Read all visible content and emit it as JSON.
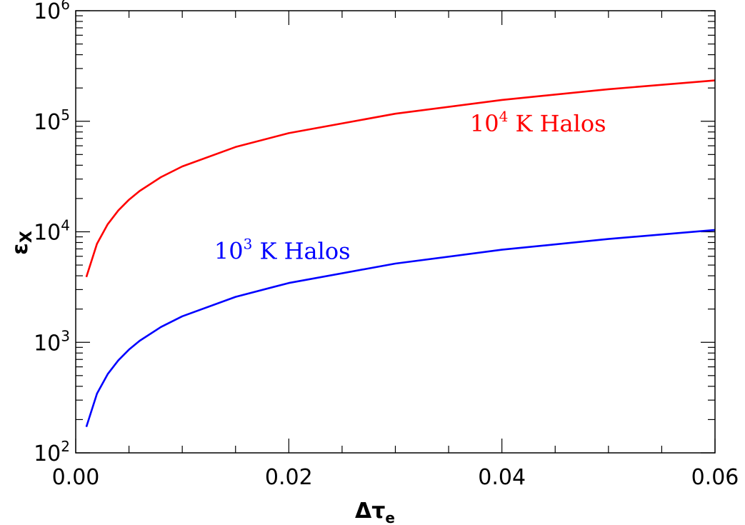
{
  "chart_data": {
    "type": "line",
    "title": "",
    "xlabel": "Δτ",
    "xlabel_subscript": "e",
    "ylabel": "ε",
    "ylabel_subscript": "X",
    "xlim": [
      0.0,
      0.06
    ],
    "ylim": [
      100,
      1000000
    ],
    "yscale": "log",
    "grid": false,
    "x_ticks": [
      {
        "value": 0.0,
        "label": "0.00"
      },
      {
        "value": 0.02,
        "label": "0.02"
      },
      {
        "value": 0.04,
        "label": "0.04"
      },
      {
        "value": 0.06,
        "label": "0.06"
      }
    ],
    "y_ticks": [
      {
        "value": 100,
        "base": "10",
        "exp": "2"
      },
      {
        "value": 1000,
        "base": "10",
        "exp": "3"
      },
      {
        "value": 10000,
        "base": "10",
        "exp": "4"
      },
      {
        "value": 100000,
        "base": "10",
        "exp": "5"
      },
      {
        "value": 1000000,
        "base": "10",
        "exp": "6"
      }
    ],
    "series": [
      {
        "name": "10^4 K Halos",
        "label_base": "10",
        "label_exp": "4",
        "label_text": " K Halos",
        "color": "#ff0000",
        "label_at": {
          "x": 0.037,
          "y": 100000
        },
        "x": [
          0.001,
          0.002,
          0.003,
          0.004,
          0.005,
          0.006,
          0.008,
          0.01,
          0.015,
          0.02,
          0.03,
          0.04,
          0.05,
          0.06
        ],
        "y": [
          3900,
          7800,
          11700,
          15600,
          19500,
          23400,
          31200,
          39000,
          58500,
          78000,
          117000,
          156000,
          195000,
          234000
        ]
      },
      {
        "name": "10^3 K Halos",
        "label_base": "10",
        "label_exp": "3",
        "label_text": " K Halos",
        "color": "#0000ff",
        "label_at": {
          "x": 0.013,
          "y": 7000
        },
        "x": [
          0.001,
          0.002,
          0.003,
          0.004,
          0.005,
          0.006,
          0.008,
          0.01,
          0.015,
          0.02,
          0.03,
          0.04,
          0.05,
          0.06
        ],
        "y": [
          172,
          344,
          516,
          688,
          860,
          1032,
          1376,
          1720,
          2580,
          3440,
          5160,
          6880,
          8600,
          10400
        ]
      }
    ]
  }
}
